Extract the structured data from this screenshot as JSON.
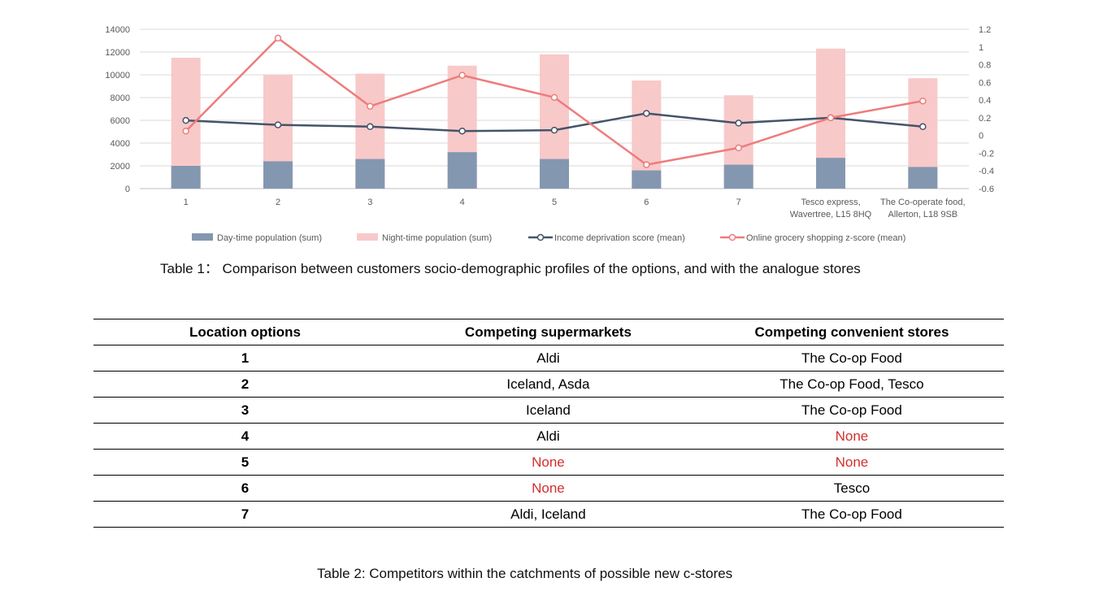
{
  "chart_data": {
    "type": "bar",
    "categories": [
      "1",
      "2",
      "3",
      "4",
      "5",
      "6",
      "7",
      "Tesco express, Wavertree, L15 8HQ",
      "The Co-operate food, Allerton, L18 9SB"
    ],
    "category_lines": [
      [
        "1"
      ],
      [
        "2"
      ],
      [
        "3"
      ],
      [
        "4"
      ],
      [
        "5"
      ],
      [
        "6"
      ],
      [
        "7"
      ],
      [
        "Tesco express,",
        "Wavertree, L15 8HQ"
      ],
      [
        "The Co-operate food,",
        "Allerton, L18 9SB"
      ]
    ],
    "series": [
      {
        "name": "Day-time population (sum)",
        "kind": "bar",
        "axis": "left",
        "color": "#8497b0",
        "values": [
          2000,
          2400,
          2600,
          3200,
          2600,
          1600,
          2100,
          2700,
          1900
        ]
      },
      {
        "name": "Night-time population (sum)",
        "kind": "bar",
        "axis": "left",
        "color": "#f8c9c9",
        "values": [
          11500,
          10000,
          10100,
          10800,
          11800,
          9500,
          8200,
          12300,
          9700
        ]
      },
      {
        "name": "Income deprivation score (mean)",
        "kind": "line",
        "axis": "right",
        "color": "#44546a",
        "values": [
          0.17,
          0.12,
          0.1,
          0.05,
          0.06,
          0.25,
          0.14,
          0.2,
          0.1
        ]
      },
      {
        "name": "Online grocery shopping z-score (mean)",
        "kind": "line",
        "axis": "right",
        "color": "#ee7c7c",
        "values": [
          0.05,
          1.1,
          0.33,
          0.68,
          0.43,
          -0.33,
          -0.14,
          0.2,
          0.39
        ]
      }
    ],
    "y_left": {
      "min": 0,
      "max": 14000,
      "ticks": [
        "0",
        "2000",
        "4000",
        "6000",
        "8000",
        "10000",
        "12000",
        "14000"
      ]
    },
    "y_right": {
      "min": -0.6,
      "max": 1.2,
      "ticks": [
        "-0.6",
        "-0.4",
        "-0.2",
        "0",
        "0.2",
        "0.4",
        "0.6",
        "0.8",
        "1",
        "1.2"
      ]
    },
    "grid": true,
    "legend_position": "bottom"
  },
  "captions": {
    "chart": "Table 1： Comparison between customers socio-demographic profiles of the options, and with the analogue stores",
    "table": "Table 2: Competitors within the catchments of possible new c-stores"
  },
  "table": {
    "headers": [
      "Location options",
      "Competing supermarkets",
      "Competing convenient stores"
    ],
    "rows": [
      {
        "location": "1",
        "supermarkets": "Aldi",
        "stores": "The Co-op Food"
      },
      {
        "location": "2",
        "supermarkets": "Iceland, Asda",
        "stores": "The Co-op Food, Tesco"
      },
      {
        "location": "3",
        "supermarkets": "Iceland",
        "stores": "The Co-op Food"
      },
      {
        "location": "4",
        "supermarkets": "Aldi",
        "stores": "None"
      },
      {
        "location": "5",
        "supermarkets": "None",
        "stores": "None"
      },
      {
        "location": "6",
        "supermarkets": "None",
        "stores": "Tesco"
      },
      {
        "location": "7",
        "supermarkets": "Aldi, Iceland",
        "stores": "The Co-op Food"
      }
    ]
  },
  "colors": {
    "none_text": "#d32f2f"
  }
}
